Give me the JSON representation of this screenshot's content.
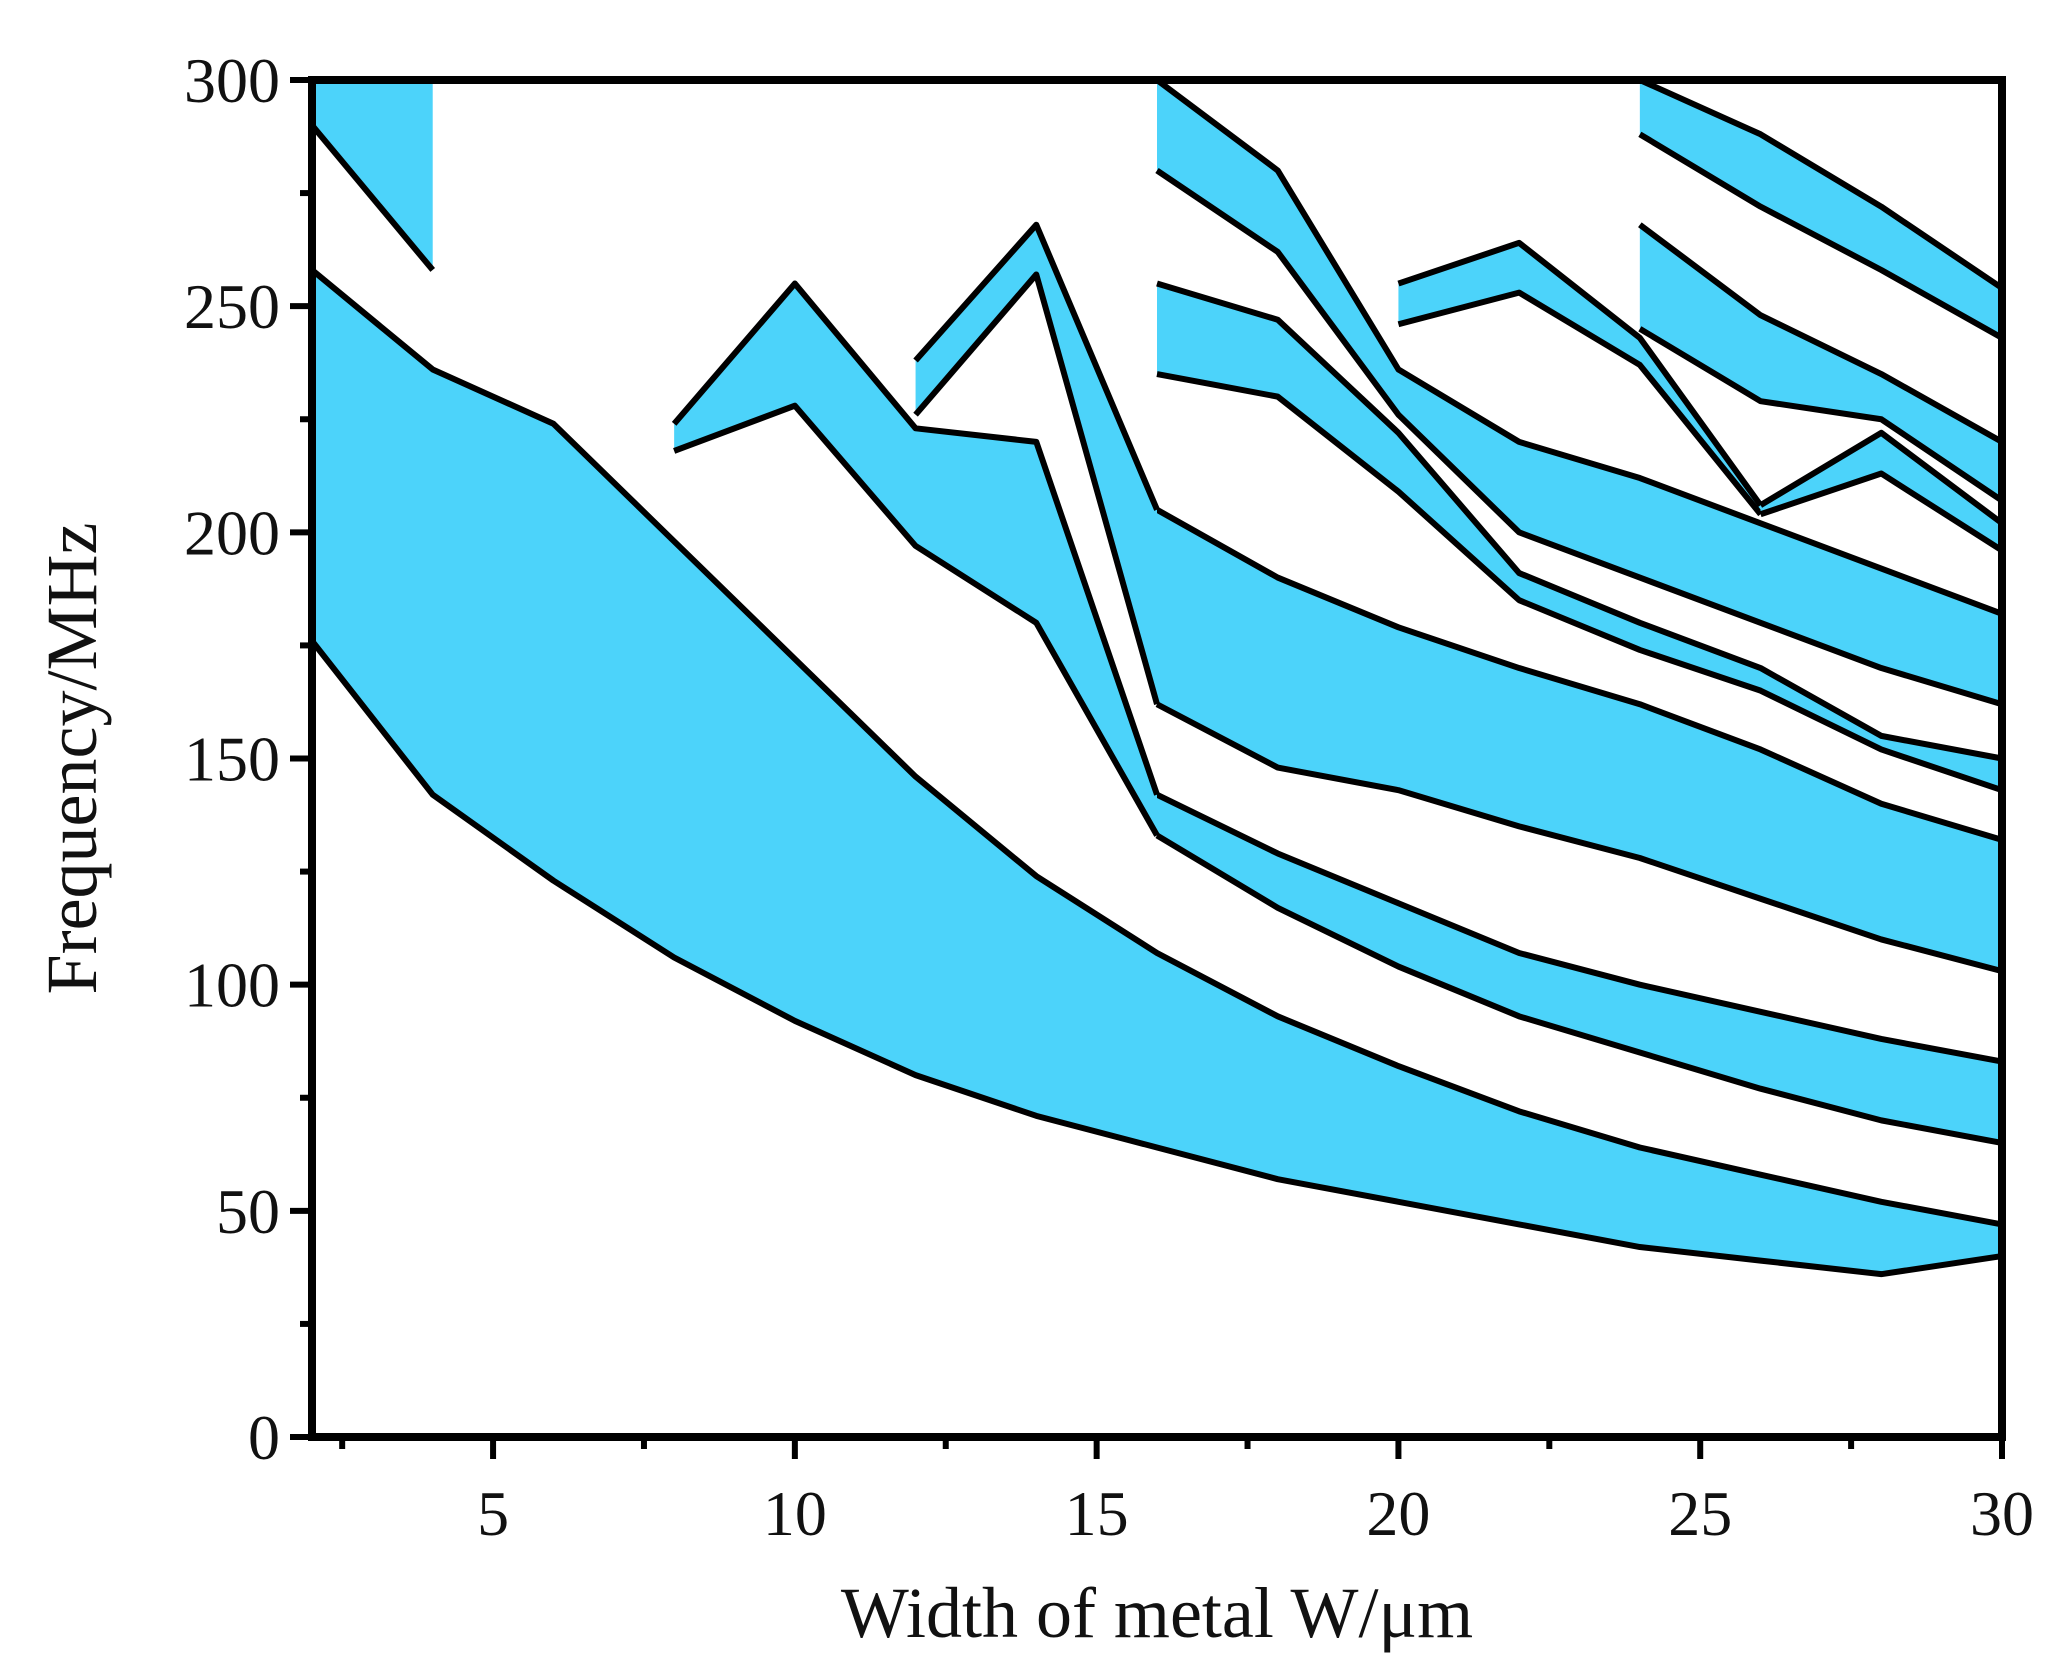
{
  "chart_data": {
    "type": "area",
    "xlabel": "Width of metal W/μm",
    "ylabel": "Frequency/MHz",
    "xlim": [
      2,
      30
    ],
    "ylim": [
      0,
      300
    ],
    "x_ticks": [
      5,
      10,
      15,
      20,
      25,
      30
    ],
    "x_tick_labels": [
      "5",
      "10",
      "15",
      "20",
      "25",
      "30"
    ],
    "y_ticks": [
      0,
      50,
      100,
      150,
      200,
      250,
      300
    ],
    "y_tick_labels": [
      "0",
      "50",
      "100",
      "150",
      "200",
      "250",
      "300"
    ],
    "fill_color": "#4CD3FA",
    "line_color": "#000000",
    "grid": false,
    "bands": [
      {
        "lower": [
          [
            2,
            176
          ],
          [
            4,
            142
          ],
          [
            6,
            123
          ],
          [
            8,
            106
          ],
          [
            10,
            92
          ],
          [
            12,
            80
          ],
          [
            14,
            71
          ],
          [
            16,
            64
          ],
          [
            18,
            57
          ],
          [
            20,
            52
          ],
          [
            22,
            47
          ],
          [
            24,
            42
          ],
          [
            26,
            39
          ],
          [
            28,
            36
          ],
          [
            30,
            40
          ]
        ],
        "upper": [
          [
            2,
            258
          ],
          [
            4,
            236
          ],
          [
            6,
            224
          ],
          [
            8,
            198
          ],
          [
            10,
            172
          ],
          [
            12,
            146
          ],
          [
            14,
            124
          ],
          [
            16,
            107
          ],
          [
            18,
            93
          ],
          [
            20,
            82
          ],
          [
            22,
            72
          ],
          [
            24,
            64
          ],
          [
            26,
            58
          ],
          [
            28,
            52
          ],
          [
            30,
            47
          ]
        ]
      },
      {
        "lower": [
          [
            16,
            133
          ],
          [
            18,
            117
          ],
          [
            20,
            104
          ],
          [
            22,
            93
          ],
          [
            24,
            85
          ],
          [
            26,
            77
          ],
          [
            28,
            70
          ],
          [
            30,
            65
          ]
        ],
        "upper": [
          [
            16,
            142
          ],
          [
            18,
            129
          ],
          [
            20,
            118
          ],
          [
            22,
            107
          ],
          [
            24,
            100
          ],
          [
            26,
            94
          ],
          [
            28,
            88
          ],
          [
            30,
            83
          ]
        ]
      },
      {
        "lower": [
          [
            16,
            162
          ],
          [
            18,
            148
          ],
          [
            20,
            143
          ],
          [
            22,
            135
          ],
          [
            24,
            128
          ],
          [
            26,
            119
          ],
          [
            28,
            110
          ],
          [
            30,
            103
          ]
        ],
        "upper": [
          [
            16,
            205
          ],
          [
            18,
            190
          ],
          [
            20,
            179
          ],
          [
            22,
            170
          ],
          [
            24,
            162
          ],
          [
            26,
            152
          ],
          [
            28,
            140
          ],
          [
            30,
            132
          ]
        ]
      },
      {
        "lower": [
          [
            16,
            235
          ],
          [
            18,
            230
          ],
          [
            20,
            209
          ],
          [
            22,
            185
          ],
          [
            24,
            174
          ],
          [
            26,
            165
          ],
          [
            28,
            152
          ],
          [
            30,
            143
          ]
        ],
        "upper": [
          [
            16,
            255
          ],
          [
            18,
            247
          ],
          [
            20,
            222
          ],
          [
            22,
            191
          ],
          [
            24,
            180
          ],
          [
            26,
            170
          ],
          [
            28,
            155
          ],
          [
            30,
            150
          ]
        ]
      },
      {
        "lower": [
          [
            16,
            280
          ],
          [
            18,
            262
          ],
          [
            20,
            226
          ],
          [
            22,
            200
          ],
          [
            24,
            190
          ],
          [
            26,
            180
          ],
          [
            28,
            170
          ],
          [
            30,
            162
          ]
        ],
        "upper": [
          [
            16,
            300
          ],
          [
            18,
            280
          ],
          [
            20,
            236
          ],
          [
            22,
            220
          ],
          [
            24,
            212
          ],
          [
            26,
            202
          ],
          [
            28,
            192
          ],
          [
            30,
            182
          ]
        ]
      },
      {
        "lower": [
          [
            8,
            218
          ],
          [
            10,
            228
          ],
          [
            12,
            197
          ],
          [
            14,
            180
          ],
          [
            16,
            133
          ]
        ],
        "upper": [
          [
            8,
            224
          ],
          [
            10,
            255
          ],
          [
            12,
            223
          ],
          [
            14,
            220
          ],
          [
            16,
            142
          ]
        ]
      },
      {
        "lower": [
          [
            12,
            226
          ],
          [
            14,
            257
          ],
          [
            16,
            162
          ]
        ],
        "upper": [
          [
            12,
            238
          ],
          [
            14,
            268
          ],
          [
            16,
            205
          ]
        ]
      },
      {
        "lower": [
          [
            2,
            290
          ],
          [
            4,
            258
          ]
        ],
        "upper": [
          [
            2,
            300
          ],
          [
            4,
            300
          ]
        ]
      },
      {
        "lower": [
          [
            20,
            246
          ],
          [
            22,
            253
          ],
          [
            24,
            237
          ],
          [
            26,
            204
          ]
        ],
        "upper": [
          [
            20,
            255
          ],
          [
            22,
            264
          ],
          [
            24,
            243
          ],
          [
            26,
            206
          ]
        ]
      },
      {
        "lower": [
          [
            24,
            245
          ],
          [
            26,
            229
          ],
          [
            28,
            225
          ],
          [
            30,
            207
          ]
        ],
        "upper": [
          [
            24,
            268
          ],
          [
            26,
            248
          ],
          [
            28,
            235
          ],
          [
            30,
            220
          ]
        ]
      },
      {
        "lower": [
          [
            26,
            204
          ],
          [
            28,
            213
          ],
          [
            30,
            196
          ]
        ],
        "upper": [
          [
            26,
            206
          ],
          [
            28,
            222
          ],
          [
            30,
            202
          ]
        ]
      },
      {
        "lower": [
          [
            24,
            288
          ],
          [
            26,
            272
          ],
          [
            28,
            258
          ],
          [
            30,
            243
          ]
        ],
        "upper": [
          [
            24,
            300
          ],
          [
            26,
            288
          ],
          [
            28,
            272
          ],
          [
            30,
            254
          ]
        ]
      }
    ]
  }
}
